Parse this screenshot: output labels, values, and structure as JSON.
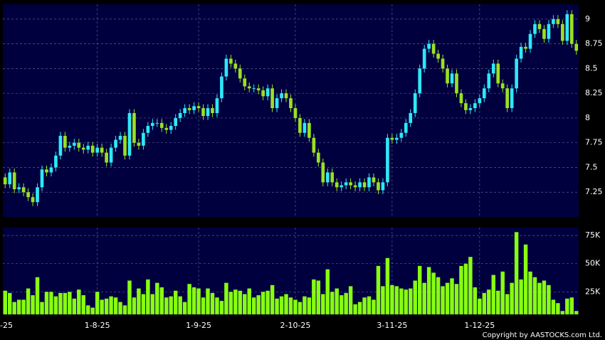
{
  "chart_data": [
    {
      "type": "candlestick",
      "up_color": "#2ee8f8",
      "down_color": "#9be022",
      "xlim": [
        -0.5,
        124.5
      ],
      "ylim": [
        7.0,
        9.15
      ],
      "yticks": [
        9,
        8.75,
        8.5,
        8.25,
        8,
        7.75,
        7.5,
        7.25
      ],
      "grid": true,
      "open": [
        7.4,
        7.33,
        7.45,
        7.28,
        7.3,
        7.25,
        7.2,
        7.15,
        7.3,
        7.48,
        7.45,
        7.5,
        7.62,
        7.82,
        7.7,
        7.72,
        7.75,
        7.7,
        7.68,
        7.72,
        7.65,
        7.7,
        7.65,
        7.55,
        7.7,
        7.78,
        7.82,
        7.62,
        8.05,
        7.75,
        7.72,
        7.85,
        7.92,
        7.95,
        7.95,
        7.9,
        7.88,
        7.92,
        8.0,
        8.05,
        8.1,
        8.08,
        8.12,
        8.1,
        8.02,
        8.1,
        8.05,
        8.2,
        8.42,
        8.6,
        8.55,
        8.5,
        8.4,
        8.32,
        8.3,
        8.3,
        8.28,
        8.22,
        8.3,
        8.1,
        8.2,
        8.25,
        8.2,
        8.1,
        8.0,
        7.85,
        7.95,
        7.8,
        7.65,
        7.55,
        7.35,
        7.45,
        7.35,
        7.3,
        7.32,
        7.35,
        7.32,
        7.3,
        7.35,
        7.3,
        7.4,
        7.35,
        7.27,
        7.35,
        7.8,
        7.78,
        7.8,
        7.85,
        7.95,
        8.05,
        8.25,
        8.5,
        8.7,
        8.75,
        8.65,
        8.6,
        8.5,
        8.35,
        8.45,
        8.25,
        8.15,
        8.08,
        8.1,
        8.15,
        8.2,
        8.3,
        8.45,
        8.55,
        8.35,
        8.3,
        8.1,
        8.3,
        8.6,
        8.72,
        8.7,
        8.85,
        8.95,
        8.9,
        8.8,
        8.95,
        9.0,
        8.95,
        8.78,
        9.05,
        8.75
      ],
      "high": [
        7.44,
        7.49,
        7.49,
        7.34,
        7.34,
        7.29,
        7.24,
        7.34,
        7.52,
        7.52,
        7.54,
        7.66,
        7.86,
        7.86,
        7.76,
        7.79,
        7.79,
        7.74,
        7.76,
        7.76,
        7.74,
        7.74,
        7.69,
        7.74,
        7.82,
        7.86,
        7.86,
        8.09,
        8.09,
        7.79,
        7.89,
        7.96,
        7.99,
        7.99,
        7.99,
        7.94,
        7.96,
        8.04,
        8.09,
        8.14,
        8.14,
        8.16,
        8.16,
        8.14,
        8.14,
        8.14,
        8.24,
        8.46,
        8.64,
        8.64,
        8.59,
        8.54,
        8.44,
        8.36,
        8.34,
        8.34,
        8.32,
        8.34,
        8.34,
        8.24,
        8.29,
        8.29,
        8.24,
        8.14,
        8.04,
        7.99,
        7.99,
        7.84,
        7.69,
        7.59,
        7.49,
        7.49,
        7.39,
        7.36,
        7.39,
        7.39,
        7.36,
        7.39,
        7.39,
        7.44,
        7.44,
        7.39,
        7.39,
        7.84,
        7.84,
        7.84,
        7.89,
        7.99,
        8.09,
        8.29,
        8.54,
        8.74,
        8.79,
        8.79,
        8.69,
        8.64,
        8.54,
        8.49,
        8.49,
        8.29,
        8.19,
        8.14,
        8.19,
        8.24,
        8.34,
        8.49,
        8.59,
        8.59,
        8.39,
        8.34,
        8.34,
        8.64,
        8.76,
        8.76,
        8.89,
        8.99,
        8.99,
        8.94,
        8.99,
        9.04,
        9.04,
        8.99,
        9.09,
        9.09,
        8.79
      ],
      "low": [
        7.29,
        7.29,
        7.24,
        7.24,
        7.21,
        7.16,
        7.11,
        7.11,
        7.26,
        7.41,
        7.41,
        7.46,
        7.58,
        7.66,
        7.66,
        7.68,
        7.66,
        7.64,
        7.64,
        7.61,
        7.61,
        7.61,
        7.51,
        7.51,
        7.66,
        7.74,
        7.58,
        7.58,
        7.71,
        7.68,
        7.68,
        7.81,
        7.88,
        7.91,
        7.86,
        7.84,
        7.84,
        7.88,
        7.96,
        8.01,
        8.04,
        8.04,
        8.06,
        7.98,
        7.98,
        8.01,
        8.01,
        8.16,
        8.38,
        8.51,
        8.46,
        8.36,
        8.28,
        8.26,
        8.26,
        8.24,
        8.18,
        8.18,
        8.06,
        8.06,
        8.16,
        8.16,
        8.06,
        7.96,
        7.81,
        7.81,
        7.76,
        7.61,
        7.51,
        7.31,
        7.31,
        7.31,
        7.26,
        7.26,
        7.28,
        7.28,
        7.26,
        7.26,
        7.26,
        7.26,
        7.31,
        7.23,
        7.23,
        7.31,
        7.74,
        7.74,
        7.76,
        7.81,
        7.91,
        8.01,
        8.21,
        8.46,
        8.66,
        8.61,
        8.56,
        8.46,
        8.31,
        8.31,
        8.21,
        8.11,
        8.04,
        8.04,
        8.06,
        8.11,
        8.16,
        8.26,
        8.41,
        8.31,
        8.26,
        8.06,
        8.06,
        8.26,
        8.56,
        8.66,
        8.66,
        8.81,
        8.86,
        8.76,
        8.76,
        8.91,
        8.91,
        8.74,
        8.74,
        8.71,
        8.64
      ],
      "close": [
        7.33,
        7.45,
        7.28,
        7.3,
        7.25,
        7.2,
        7.15,
        7.3,
        7.48,
        7.45,
        7.5,
        7.62,
        7.82,
        7.7,
        7.72,
        7.75,
        7.7,
        7.68,
        7.72,
        7.65,
        7.7,
        7.65,
        7.55,
        7.7,
        7.78,
        7.82,
        7.62,
        8.05,
        7.75,
        7.72,
        7.85,
        7.92,
        7.95,
        7.95,
        7.9,
        7.88,
        7.92,
        8.0,
        8.05,
        8.1,
        8.08,
        8.12,
        8.1,
        8.02,
        8.1,
        8.05,
        8.2,
        8.42,
        8.6,
        8.55,
        8.5,
        8.4,
        8.32,
        8.3,
        8.3,
        8.28,
        8.22,
        8.3,
        8.1,
        8.2,
        8.25,
        8.2,
        8.1,
        8.0,
        7.85,
        7.95,
        7.8,
        7.65,
        7.55,
        7.35,
        7.45,
        7.35,
        7.3,
        7.32,
        7.35,
        7.32,
        7.3,
        7.35,
        7.3,
        7.4,
        7.35,
        7.27,
        7.35,
        7.8,
        7.78,
        7.8,
        7.85,
        7.95,
        8.05,
        8.25,
        8.5,
        8.7,
        8.75,
        8.65,
        8.6,
        8.5,
        8.35,
        8.45,
        8.25,
        8.15,
        8.08,
        8.1,
        8.15,
        8.2,
        8.3,
        8.45,
        8.55,
        8.35,
        8.3,
        8.1,
        8.3,
        8.6,
        8.72,
        8.7,
        8.85,
        8.95,
        8.9,
        8.8,
        8.95,
        9.0,
        8.95,
        8.78,
        9.05,
        8.75,
        8.68
      ]
    },
    {
      "type": "bar",
      "color": "#88ff11",
      "xlim": [
        -0.5,
        124.5
      ],
      "ylim": [
        5000,
        82000
      ],
      "yticks": [
        {
          "value": 75000,
          "label": "75K"
        },
        {
          "value": 50000,
          "label": "50K"
        },
        {
          "value": 25000,
          "label": "25K"
        }
      ],
      "xticks": [
        {
          "value": -1,
          "label": "-25"
        },
        {
          "value": 20,
          "label": "1-8-25"
        },
        {
          "value": 42,
          "label": "1-9-25"
        },
        {
          "value": 63,
          "label": "2-10-25"
        },
        {
          "value": 84,
          "label": "3-11-25"
        },
        {
          "value": 103,
          "label": "1-12-25"
        }
      ],
      "grid": true,
      "values": [
        26000,
        24000,
        16000,
        18000,
        18000,
        28000,
        22000,
        38000,
        16000,
        25000,
        25000,
        21000,
        24000,
        24000,
        25000,
        19000,
        27000,
        22000,
        13000,
        11000,
        25000,
        18000,
        19000,
        21000,
        20000,
        16000,
        13000,
        35000,
        20000,
        28000,
        23000,
        36000,
        23000,
        33000,
        29000,
        20000,
        21000,
        26000,
        21000,
        16000,
        32000,
        29000,
        28000,
        20000,
        28000,
        24000,
        20000,
        17000,
        33000,
        25000,
        27000,
        26000,
        23000,
        28000,
        20000,
        22000,
        25000,
        26000,
        31000,
        19000,
        21000,
        23000,
        20000,
        18000,
        16000,
        21000,
        20000,
        36000,
        35000,
        23000,
        45000,
        25000,
        28000,
        22000,
        24000,
        30000,
        14000,
        16000,
        20000,
        21000,
        18000,
        48000,
        30000,
        55000,
        31000,
        30000,
        28000,
        27000,
        28000,
        35000,
        48000,
        33000,
        47000,
        42000,
        38000,
        30000,
        33000,
        37000,
        32000,
        48000,
        50000,
        56000,
        29000,
        19000,
        24000,
        27000,
        40000,
        26000,
        43000,
        23000,
        33000,
        78000,
        36000,
        67000,
        43000,
        38000,
        33000,
        35000,
        31000,
        18000,
        15000,
        8000,
        19000,
        20000,
        8000
      ]
    }
  ],
  "copyright": "Copyright by AASTOCKS.com Ltd."
}
